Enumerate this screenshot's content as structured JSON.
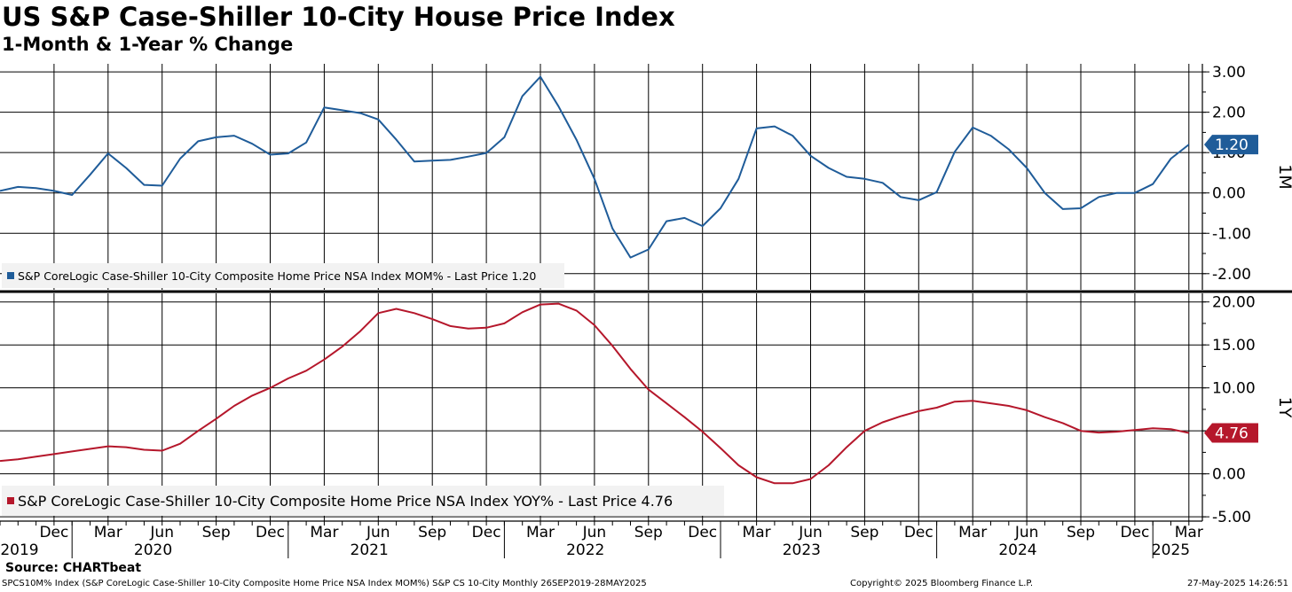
{
  "title": "US S&P Case-Shiller 10-City House Price Index",
  "subtitle": "1-Month & 1-Year % Change",
  "source": "Source: CHARTbeat",
  "footer": {
    "left": "SPCS10M% Index (S&P CoreLogic Case-Shiller 10-City Composite Home Price NSA Index MOM%) S&P CS 10-City  Monthly 26SEP2019-28MAY2025",
    "middle": "Copyright© 2025 Bloomberg Finance L.P.",
    "right": "27-May-2025 14:26:51"
  },
  "colors": {
    "mom": "#1f5c99",
    "yoy": "#b5172b",
    "grid": "#000000"
  },
  "chart_data": [
    {
      "type": "line",
      "panel": "top",
      "axis_label": "1M",
      "ylim": [
        -2.4,
        3.2
      ],
      "yticks": [
        3.0,
        2.0,
        1.0,
        0.0,
        -1.0,
        -2.0
      ],
      "ytick_labels": [
        "3.00",
        "2.00",
        "1.00",
        "0.00",
        "-1.00",
        "-2.00"
      ],
      "legend": "S&P CoreLogic Case-Shiller 10-City Composite Home Price NSA Index MOM% - Last Price 1.20",
      "last_value": 1.2,
      "last_label": "1.20",
      "series": [
        {
          "name": "MOM%",
          "start": "2019-09",
          "values": [
            0.05,
            0.15,
            0.12,
            0.05,
            -0.05,
            0.45,
            0.98,
            0.62,
            0.2,
            0.18,
            0.85,
            1.28,
            1.38,
            1.42,
            1.22,
            0.95,
            0.98,
            1.25,
            2.12,
            2.05,
            1.98,
            1.82,
            1.32,
            0.78,
            0.8,
            0.82,
            0.9,
            0.99,
            1.38,
            2.4,
            2.88,
            2.15,
            1.32,
            0.35,
            -0.88,
            -1.6,
            -1.4,
            -0.7,
            -0.62,
            -0.82,
            -0.38,
            0.35,
            1.6,
            1.65,
            1.42,
            0.92,
            0.62,
            0.4,
            0.35,
            0.25,
            -0.1,
            -0.18,
            0.02,
            1.02,
            1.62,
            1.42,
            1.08,
            0.62,
            0.0,
            -0.4,
            -0.38,
            -0.1,
            0.0,
            0.0,
            0.22,
            0.85,
            1.2
          ]
        }
      ]
    },
    {
      "type": "line",
      "panel": "bottom",
      "axis_label": "1Y",
      "ylim": [
        -5.5,
        21
      ],
      "yticks": [
        20,
        15,
        10,
        5,
        0,
        -5
      ],
      "ytick_labels": [
        "20.00",
        "15.00",
        "10.00",
        "",
        "0.00",
        "-5.00"
      ],
      "legend": "S&P CoreLogic Case-Shiller 10-City Composite Home Price NSA Index YOY% - Last Price 4.76",
      "last_value": 4.76,
      "last_label": "4.76",
      "series": [
        {
          "name": "YOY%",
          "start": "2019-09",
          "values": [
            1.5,
            1.7,
            2.0,
            2.3,
            2.6,
            2.9,
            3.2,
            3.1,
            2.8,
            2.7,
            3.5,
            5.0,
            6.4,
            7.9,
            9.1,
            10.0,
            11.1,
            12.0,
            13.3,
            14.8,
            16.6,
            18.7,
            19.2,
            18.7,
            18.0,
            17.2,
            16.9,
            17.0,
            17.5,
            18.8,
            19.7,
            19.8,
            19.0,
            17.3,
            14.9,
            12.2,
            9.8,
            8.2,
            6.6,
            4.9,
            3.0,
            1.0,
            -0.4,
            -1.1,
            -1.1,
            -0.6,
            1.0,
            3.1,
            5.0,
            6.0,
            6.7,
            7.3,
            7.7,
            8.4,
            8.5,
            8.2,
            7.9,
            7.4,
            6.6,
            5.9,
            5.0,
            4.8,
            4.9,
            5.1,
            5.3,
            5.2,
            4.76
          ]
        }
      ]
    }
  ],
  "x_axis": {
    "months": [
      {
        "label": "Dec",
        "index": 3
      },
      {
        "label": "Mar",
        "index": 6
      },
      {
        "label": "Jun",
        "index": 9
      },
      {
        "label": "Sep",
        "index": 12
      },
      {
        "label": "Dec",
        "index": 15
      },
      {
        "label": "Mar",
        "index": 18
      },
      {
        "label": "Jun",
        "index": 21
      },
      {
        "label": "Sep",
        "index": 24
      },
      {
        "label": "Dec",
        "index": 27
      },
      {
        "label": "Mar",
        "index": 30
      },
      {
        "label": "Jun",
        "index": 33
      },
      {
        "label": "Sep",
        "index": 36
      },
      {
        "label": "Dec",
        "index": 39
      },
      {
        "label": "Mar",
        "index": 42
      },
      {
        "label": "Jun",
        "index": 45
      },
      {
        "label": "Sep",
        "index": 48
      },
      {
        "label": "Dec",
        "index": 51
      },
      {
        "label": "Mar",
        "index": 54
      },
      {
        "label": "Jun",
        "index": 57
      },
      {
        "label": "Sep",
        "index": 60
      },
      {
        "label": "Dec",
        "index": 63
      },
      {
        "label": "Mar",
        "index": 66
      }
    ],
    "years": [
      {
        "label": "2019",
        "index": 0
      },
      {
        "label": "2020",
        "index": 9
      },
      {
        "label": "2021",
        "index": 21
      },
      {
        "label": "2022",
        "index": 33
      },
      {
        "label": "2023",
        "index": 45
      },
      {
        "label": "2024",
        "index": 57
      },
      {
        "label": "2025",
        "index": 66
      }
    ]
  }
}
